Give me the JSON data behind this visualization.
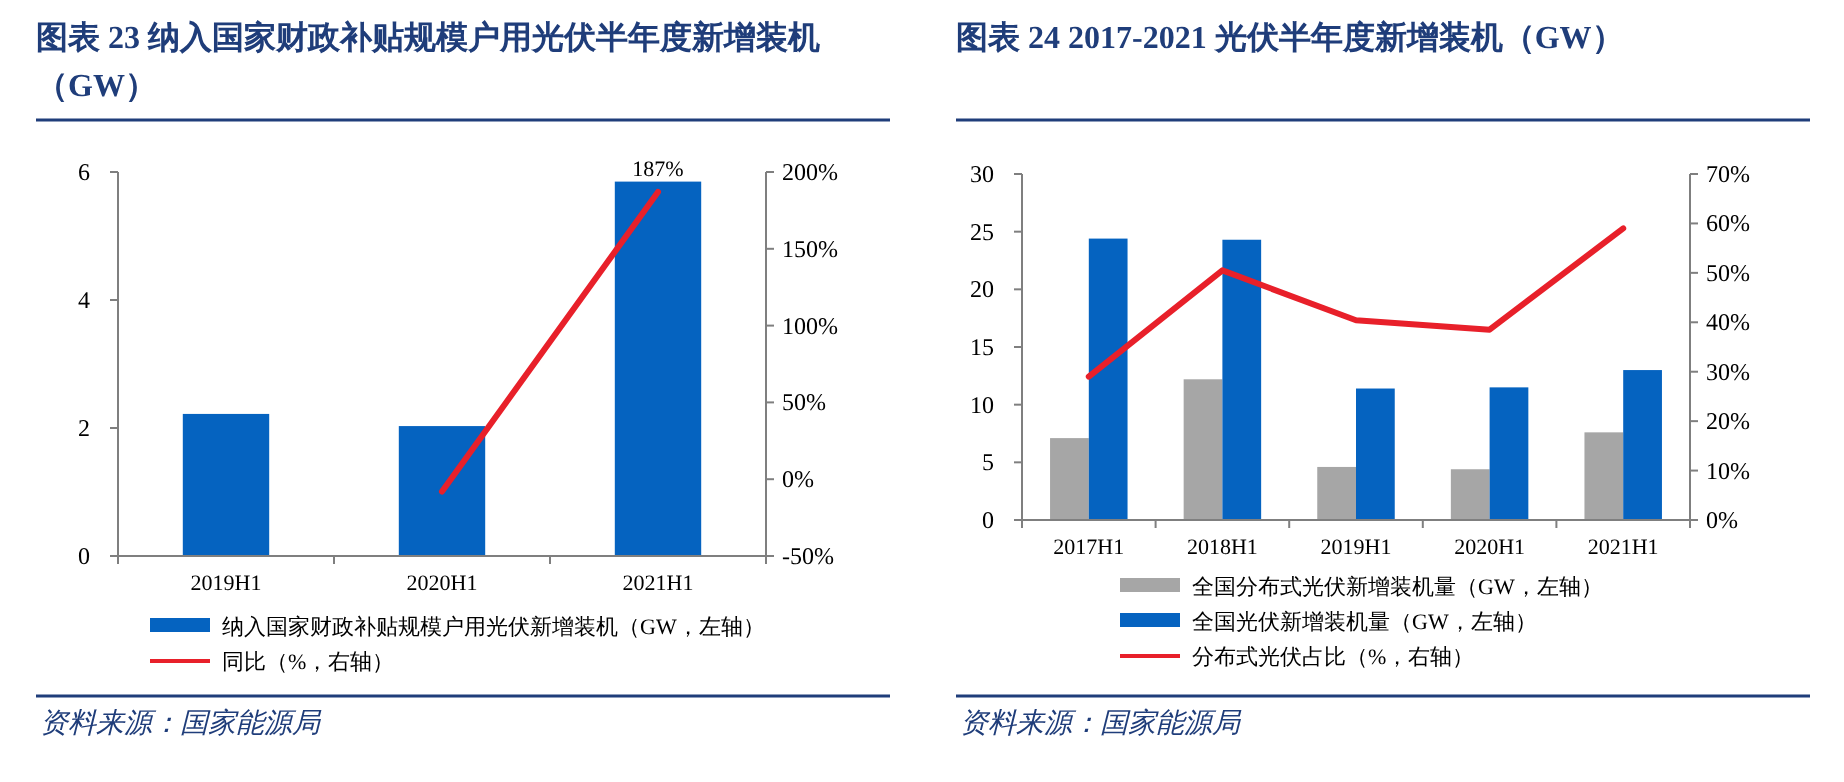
{
  "chart_data": [
    {
      "type": "bar",
      "title": "图表 23 纳入国家财政补贴规模户用光伏半年度新增装机（GW）",
      "categories": [
        "2019H1",
        "2020H1",
        "2021H1"
      ],
      "series": [
        {
          "name": "纳入国家财政补贴规模户用光伏新增装机（GW，左轴）",
          "color": "#0563c0",
          "values": [
            2.22,
            2.03,
            5.85
          ]
        },
        {
          "name": "同比（%，右轴）",
          "type": "line",
          "axis": "y2",
          "color": "#e8202a",
          "values": [
            null,
            -8,
            187
          ],
          "value_labels": [
            null,
            null,
            "187%"
          ]
        }
      ],
      "ylim": [
        0,
        6
      ],
      "yticks": [
        0,
        2,
        4,
        6
      ],
      "y2lim": [
        -50,
        200
      ],
      "y2ticks": [
        {
          "value": -50,
          "label": "-50%"
        },
        {
          "value": 0,
          "label": "0%"
        },
        {
          "value": 50,
          "label": "50%"
        },
        {
          "value": 100,
          "label": "100%"
        },
        {
          "value": 150,
          "label": "150%"
        },
        {
          "value": 200,
          "label": "200%"
        }
      ],
      "legend": "bottom",
      "annotations": [
        "资料来源：国家能源局"
      ]
    },
    {
      "type": "bar",
      "title": "图表 24 2017-2021 光伏半年度新增装机（GW）",
      "categories": [
        "2017H1",
        "2018H1",
        "2019H1",
        "2020H1",
        "2021H1"
      ],
      "series": [
        {
          "name": "全国分布式光伏新增装机量（GW，左轴）",
          "color": "#a6a6a6",
          "values": [
            7.1,
            12.2,
            4.6,
            4.4,
            7.6
          ]
        },
        {
          "name": "全国光伏新增装机量（GW，左轴）",
          "color": "#0563c0",
          "values": [
            24.4,
            24.3,
            11.4,
            11.5,
            13.0
          ]
        },
        {
          "name": "分布式光伏占比（%，右轴）",
          "type": "line",
          "axis": "y2",
          "color": "#e8202a",
          "values": [
            29,
            50.5,
            40.4,
            38.5,
            59
          ]
        }
      ],
      "ylim": [
        0,
        30
      ],
      "yticks": [
        0,
        5,
        10,
        15,
        20,
        25,
        30
      ],
      "y2lim": [
        0,
        70
      ],
      "y2ticks": [
        {
          "value": 0,
          "label": "0%"
        },
        {
          "value": 10,
          "label": "10%"
        },
        {
          "value": 20,
          "label": "20%"
        },
        {
          "value": 30,
          "label": "30%"
        },
        {
          "value": 40,
          "label": "40%"
        },
        {
          "value": 50,
          "label": "50%"
        },
        {
          "value": 60,
          "label": "60%"
        },
        {
          "value": 70,
          "label": "70%"
        }
      ],
      "legend": "bottom",
      "annotations": [
        "资料来源：国家能源局"
      ]
    }
  ]
}
